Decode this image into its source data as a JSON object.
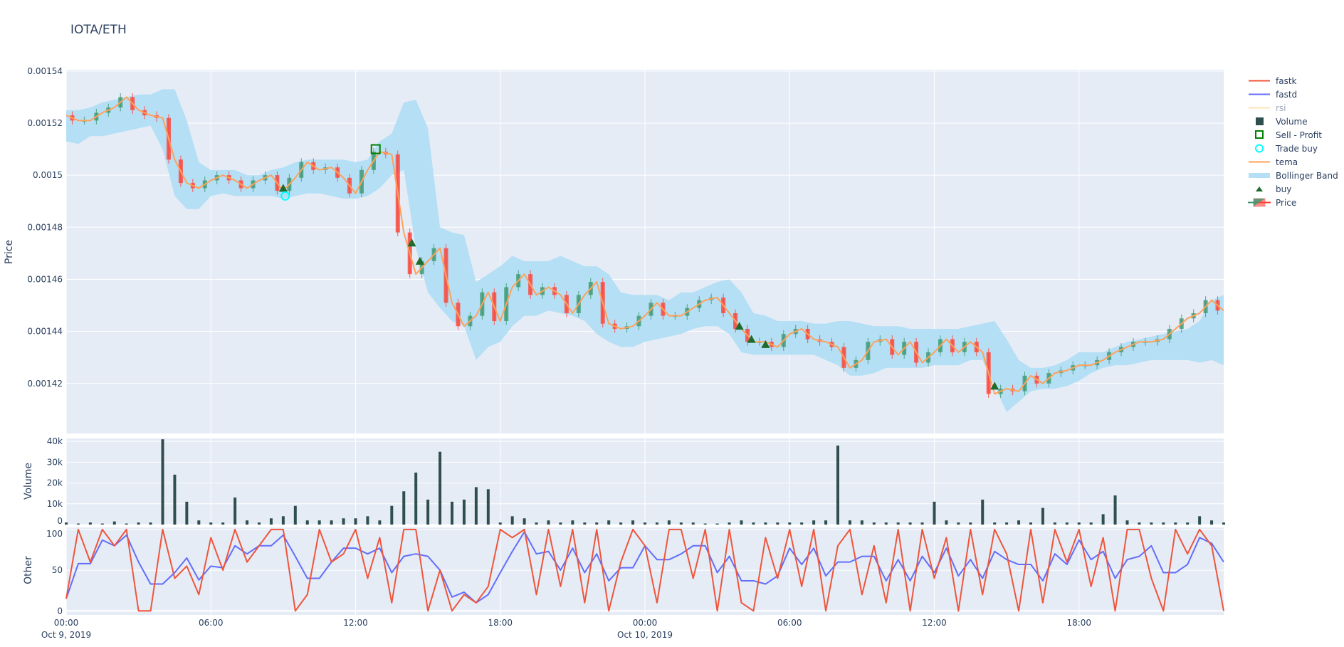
{
  "title": "IOTA/ETH",
  "legend": [
    {
      "name": "fastk",
      "color": "#ef553b",
      "symbol": "line"
    },
    {
      "name": "fastd",
      "color": "#636efa",
      "symbol": "line"
    },
    {
      "name": "rsi",
      "color": "#fde5b5",
      "symbol": "line",
      "hidden": true
    },
    {
      "name": "Volume",
      "color": "#2f4f4f",
      "symbol": "square"
    },
    {
      "name": "Sell - Profit",
      "color": "#008000",
      "symbol": "square-open"
    },
    {
      "name": "Trade buy",
      "color": "#00ffff",
      "symbol": "circle-open"
    },
    {
      "name": "tema",
      "color": "#ffa15a",
      "symbol": "line"
    },
    {
      "name": "Bollinger Band",
      "color": "#b5dff5",
      "symbol": "band"
    },
    {
      "name": "buy",
      "color": "#1e6b2e",
      "symbol": "triangle-up"
    },
    {
      "name": "Price",
      "color": "#3d9970",
      "symbol": "candle"
    }
  ],
  "chart_data": {
    "type": "line",
    "axes": {
      "price": {
        "title": "Price",
        "ylim": [
          0.0014008,
          0.0015405
        ],
        "ticks": [
          "0.00154",
          "0.00152",
          "0.0015",
          "0.00148",
          "0.00146",
          "0.00144",
          "0.00142"
        ],
        "tick_values": [
          0.00154,
          0.00152,
          0.0015,
          0.00148,
          0.00146,
          0.00144,
          0.00142
        ]
      },
      "volume": {
        "title": "Volume",
        "ylim": [
          0,
          41400
        ],
        "ticks": [
          "40k",
          "30k",
          "20k",
          "10k",
          "0"
        ],
        "tick_values": [
          40000,
          30000,
          20000,
          10000,
          0
        ]
      },
      "other": {
        "title": "Other",
        "ylim": [
          -5,
          102.5
        ],
        "ticks": [
          "100",
          "50",
          "0"
        ],
        "tick_values": [
          100,
          50,
          0
        ]
      },
      "x": {
        "ticks": [
          {
            "label": "00:00",
            "sub": "Oct 9, 2019",
            "t": "2019-10-09 00:00"
          },
          {
            "label": "06:00",
            "sub": "",
            "t": "2019-10-09 06:00"
          },
          {
            "label": "12:00",
            "sub": "",
            "t": "2019-10-09 12:00"
          },
          {
            "label": "18:00",
            "sub": "",
            "t": "2019-10-09 18:00"
          },
          {
            "label": "00:00",
            "sub": "Oct 10, 2019",
            "t": "2019-10-10 00:00"
          },
          {
            "label": "06:00",
            "sub": "",
            "t": "2019-10-10 06:00"
          },
          {
            "label": "12:00",
            "sub": "",
            "t": "2019-10-10 12:00"
          },
          {
            "label": "18:00",
            "sub": "",
            "t": "2019-10-10 18:00"
          }
        ],
        "range": [
          "2019-10-09 00:00",
          "2019-10-11 00:00"
        ]
      }
    },
    "grid": true,
    "legend_position": "right",
    "x": [
      "2019-10-09 00:00",
      "2019-10-09 00:30",
      "2019-10-09 01:00",
      "2019-10-09 01:30",
      "2019-10-09 02:00",
      "2019-10-09 02:30",
      "2019-10-09 03:00",
      "2019-10-09 03:30",
      "2019-10-09 04:00",
      "2019-10-09 04:30",
      "2019-10-09 05:00",
      "2019-10-09 05:30",
      "2019-10-09 06:00",
      "2019-10-09 06:30",
      "2019-10-09 07:00",
      "2019-10-09 07:30",
      "2019-10-09 08:00",
      "2019-10-09 08:30",
      "2019-10-09 09:00",
      "2019-10-09 09:30",
      "2019-10-09 10:00",
      "2019-10-09 10:30",
      "2019-10-09 11:00",
      "2019-10-09 11:30",
      "2019-10-09 12:00",
      "2019-10-09 12:30",
      "2019-10-09 13:00",
      "2019-10-09 13:30",
      "2019-10-09 14:00",
      "2019-10-09 14:30",
      "2019-10-09 15:00",
      "2019-10-09 15:30",
      "2019-10-09 16:00",
      "2019-10-09 16:30",
      "2019-10-09 17:00",
      "2019-10-09 17:30",
      "2019-10-09 18:00",
      "2019-10-09 18:30",
      "2019-10-09 19:00",
      "2019-10-09 19:30",
      "2019-10-09 20:00",
      "2019-10-09 20:30",
      "2019-10-09 21:00",
      "2019-10-09 21:30",
      "2019-10-09 22:00",
      "2019-10-09 22:30",
      "2019-10-09 23:00",
      "2019-10-09 23:30",
      "2019-10-10 00:00",
      "2019-10-10 00:30",
      "2019-10-10 01:00",
      "2019-10-10 01:30",
      "2019-10-10 02:00",
      "2019-10-10 02:30",
      "2019-10-10 03:00",
      "2019-10-10 03:30",
      "2019-10-10 04:00",
      "2019-10-10 04:30",
      "2019-10-10 05:00",
      "2019-10-10 05:30",
      "2019-10-10 06:00",
      "2019-10-10 06:30",
      "2019-10-10 07:00",
      "2019-10-10 07:30",
      "2019-10-10 08:00",
      "2019-10-10 08:30",
      "2019-10-10 09:00",
      "2019-10-10 09:30",
      "2019-10-10 10:00",
      "2019-10-10 10:30",
      "2019-10-10 11:00",
      "2019-10-10 11:30",
      "2019-10-10 12:00",
      "2019-10-10 12:30",
      "2019-10-10 13:00",
      "2019-10-10 13:30",
      "2019-10-10 14:00",
      "2019-10-10 14:30",
      "2019-10-10 15:00",
      "2019-10-10 15:30",
      "2019-10-10 16:00",
      "2019-10-10 16:30",
      "2019-10-10 17:00",
      "2019-10-10 17:30",
      "2019-10-10 18:00",
      "2019-10-10 18:30",
      "2019-10-10 19:00",
      "2019-10-10 19:30",
      "2019-10-10 20:00",
      "2019-10-10 20:30",
      "2019-10-10 21:00",
      "2019-10-10 21:30",
      "2019-10-10 22:00",
      "2019-10-10 22:30",
      "2019-10-10 23:00",
      "2019-10-10 23:30",
      "2019-10-11 00:00"
    ],
    "series": [
      {
        "name": "tema",
        "panel": "price",
        "values": [
          0.001523,
          0.001521,
          0.001521,
          0.001524,
          0.001526,
          0.00153,
          0.001525,
          0.001523,
          0.001522,
          0.001506,
          0.001497,
          0.001495,
          0.001498,
          0.0015,
          0.001498,
          0.001495,
          0.001498,
          0.0015,
          0.001494,
          0.001499,
          0.001505,
          0.001502,
          0.001503,
          0.001499,
          0.001493,
          0.001502,
          0.001509,
          0.001508,
          0.001478,
          0.001462,
          0.001467,
          0.001472,
          0.001451,
          0.001442,
          0.001446,
          0.001455,
          0.001444,
          0.001457,
          0.001462,
          0.001454,
          0.001457,
          0.001454,
          0.001447,
          0.001454,
          0.001459,
          0.001443,
          0.001441,
          0.001442,
          0.001446,
          0.001451,
          0.001446,
          0.001446,
          0.001449,
          0.001452,
          0.001453,
          0.001447,
          0.001441,
          0.001436,
          0.001436,
          0.001434,
          0.001439,
          0.001441,
          0.001437,
          0.001436,
          0.001434,
          0.001426,
          0.001429,
          0.001436,
          0.001437,
          0.001431,
          0.001436,
          0.001428,
          0.001432,
          0.001437,
          0.001432,
          0.001436,
          0.001432,
          0.001416,
          0.001418,
          0.001417,
          0.001423,
          0.00142,
          0.001424,
          0.001425,
          0.001427,
          0.001427,
          0.001429,
          0.001432,
          0.001434,
          0.001436,
          0.001436,
          0.001437,
          0.001441,
          0.001445,
          0.001447,
          0.001452,
          0.001448
        ]
      },
      {
        "name": "Bollinger Band upper",
        "panel": "price",
        "values": [
          0.001525,
          0.001525,
          0.001526,
          0.001528,
          0.001529,
          0.00153,
          0.001531,
          0.001531,
          0.001533,
          0.001533,
          0.001521,
          0.001505,
          0.001502,
          0.001502,
          0.001502,
          0.0015,
          0.0015,
          0.001502,
          0.001503,
          0.001505,
          0.001506,
          0.001506,
          0.001506,
          0.001506,
          0.001505,
          0.001506,
          0.001513,
          0.001516,
          0.001528,
          0.001529,
          0.001518,
          0.00148,
          0.001478,
          0.001477,
          0.001459,
          0.001462,
          0.001465,
          0.001469,
          0.001467,
          0.001467,
          0.001467,
          0.001469,
          0.001467,
          0.001465,
          0.001465,
          0.001462,
          0.001455,
          0.001454,
          0.001454,
          0.001454,
          0.001452,
          0.001455,
          0.001455,
          0.001457,
          0.001459,
          0.00146,
          0.001455,
          0.001447,
          0.001446,
          0.001444,
          0.001444,
          0.001444,
          0.001443,
          0.001443,
          0.001444,
          0.001444,
          0.001443,
          0.001442,
          0.001442,
          0.001442,
          0.001441,
          0.001441,
          0.001441,
          0.001441,
          0.001441,
          0.001442,
          0.001443,
          0.001444,
          0.001437,
          0.001429,
          0.001426,
          0.001426,
          0.001427,
          0.001429,
          0.001432,
          0.001432,
          0.001432,
          0.001434,
          0.001436,
          0.001437,
          0.001438,
          0.001439,
          0.00144,
          0.001441,
          0.001444,
          0.001452,
          0.001454
        ]
      },
      {
        "name": "Bollinger Band lower",
        "panel": "price",
        "values": [
          0.001513,
          0.001512,
          0.001515,
          0.001515,
          0.001516,
          0.001517,
          0.001518,
          0.001519,
          0.00151,
          0.001492,
          0.001487,
          0.001487,
          0.001492,
          0.001493,
          0.001492,
          0.001492,
          0.001492,
          0.001492,
          0.001491,
          0.001492,
          0.001493,
          0.001493,
          0.001492,
          0.001491,
          0.001491,
          0.001492,
          0.001495,
          0.0015,
          0.001502,
          0.001472,
          0.001455,
          0.001449,
          0.001444,
          0.001442,
          0.001429,
          0.001434,
          0.001436,
          0.001442,
          0.001446,
          0.001446,
          0.001448,
          0.001447,
          0.001446,
          0.001444,
          0.001439,
          0.001436,
          0.001434,
          0.001434,
          0.001436,
          0.001437,
          0.001438,
          0.001439,
          0.001441,
          0.001442,
          0.001442,
          0.001439,
          0.001432,
          0.001431,
          0.001431,
          0.001431,
          0.001431,
          0.001431,
          0.001431,
          0.001429,
          0.001427,
          0.001423,
          0.001423,
          0.001424,
          0.001426,
          0.001426,
          0.001426,
          0.001426,
          0.001427,
          0.001427,
          0.001427,
          0.001429,
          0.001429,
          0.001419,
          0.001409,
          0.001413,
          0.001417,
          0.001418,
          0.001418,
          0.001419,
          0.001421,
          0.001424,
          0.001426,
          0.001427,
          0.001427,
          0.001428,
          0.001429,
          0.001429,
          0.001429,
          0.001429,
          0.001428,
          0.001429,
          0.001427
        ]
      },
      {
        "name": "Volume",
        "panel": "volume",
        "values": [
          1000,
          500,
          1000,
          500,
          1500,
          500,
          1000,
          1000,
          41000,
          24000,
          11000,
          2000,
          1000,
          1000,
          13000,
          2000,
          1000,
          3000,
          4000,
          9000,
          2000,
          2000,
          2000,
          3000,
          3000,
          4000,
          2000,
          9000,
          16000,
          25000,
          12000,
          35000,
          11000,
          12000,
          18000,
          17000,
          1000,
          4000,
          3000,
          1000,
          2000,
          1000,
          2000,
          1000,
          1000,
          2000,
          1000,
          2000,
          1000,
          1000,
          2000,
          1000,
          1000,
          500,
          500,
          1000,
          2000,
          1000,
          1000,
          1000,
          1000,
          1000,
          2000,
          2000,
          38000,
          2000,
          2000,
          1000,
          1000,
          1000,
          1000,
          1000,
          11000,
          2000,
          1000,
          1000,
          12000,
          1000,
          1000,
          2000,
          1000,
          8000,
          1000,
          1000,
          1000,
          1000,
          5000,
          14000,
          2000,
          1000,
          1000,
          1000,
          1000,
          1000,
          4000,
          2000,
          1000
        ]
      },
      {
        "name": "fastk",
        "panel": "other",
        "values": [
          15,
          100,
          60,
          100,
          80,
          100,
          0,
          0,
          100,
          40,
          55,
          20,
          90,
          50,
          100,
          60,
          80,
          100,
          100,
          0,
          20,
          100,
          60,
          70,
          100,
          40,
          90,
          10,
          100,
          100,
          0,
          50,
          0,
          20,
          10,
          30,
          100,
          90,
          100,
          20,
          100,
          30,
          100,
          10,
          100,
          0,
          60,
          100,
          80,
          10,
          100,
          100,
          40,
          100,
          0,
          100,
          10,
          0,
          90,
          40,
          100,
          30,
          100,
          0,
          80,
          100,
          20,
          80,
          10,
          100,
          0,
          100,
          40,
          90,
          0,
          100,
          20,
          100,
          70,
          0,
          100,
          10,
          100,
          60,
          100,
          30,
          90,
          0,
          100,
          100,
          40,
          0,
          100,
          70,
          100,
          80,
          0
        ]
      },
      {
        "name": "fastd",
        "panel": "other",
        "values": [
          15,
          58,
          58,
          87,
          80,
          93,
          60,
          33,
          33,
          47,
          65,
          38,
          55,
          53,
          80,
          70,
          80,
          80,
          93,
          67,
          40,
          40,
          60,
          77,
          77,
          70,
          77,
          47,
          67,
          70,
          67,
          50,
          17,
          23,
          10,
          20,
          47,
          73,
          97,
          70,
          73,
          50,
          77,
          47,
          70,
          37,
          53,
          53,
          80,
          63,
          63,
          70,
          80,
          80,
          47,
          67,
          37,
          37,
          33,
          43,
          77,
          57,
          77,
          43,
          60,
          60,
          67,
          67,
          37,
          63,
          37,
          67,
          47,
          77,
          43,
          63,
          40,
          73,
          63,
          57,
          57,
          37,
          70,
          57,
          87,
          63,
          73,
          40,
          63,
          67,
          80,
          47,
          47,
          57,
          90,
          83,
          60
        ]
      }
    ],
    "markers": {
      "buy": [
        {
          "t": "2019-10-09 09:00",
          "price": 0.001495
        },
        {
          "t": "2019-10-09 14:20",
          "price": 0.001474
        },
        {
          "t": "2019-10-09 14:40",
          "price": 0.001467
        },
        {
          "t": "2019-10-10 03:55",
          "price": 0.001442
        },
        {
          "t": "2019-10-10 04:25",
          "price": 0.001437
        },
        {
          "t": "2019-10-10 05:00",
          "price": 0.001435
        },
        {
          "t": "2019-10-10 14:30",
          "price": 0.001419
        }
      ],
      "trade_buy": [
        {
          "t": "2019-10-09 09:05",
          "price": 0.001492
        }
      ],
      "sell_profit": [
        {
          "t": "2019-10-09 12:50",
          "price": 0.00151
        }
      ]
    },
    "colors": {
      "background": "#e5ecf6",
      "grid": "#ffffff",
      "increasing": "#3d9970",
      "decreasing": "#ff4136",
      "tema": "#ffa15a",
      "band": "#b5dff5",
      "fastk": "#ef553b",
      "fastd": "#636efa",
      "volume": "#2f4f4f",
      "buy": "#1e6b2e",
      "trade_buy": "#00ffff",
      "sell_profit": "#008000"
    }
  }
}
